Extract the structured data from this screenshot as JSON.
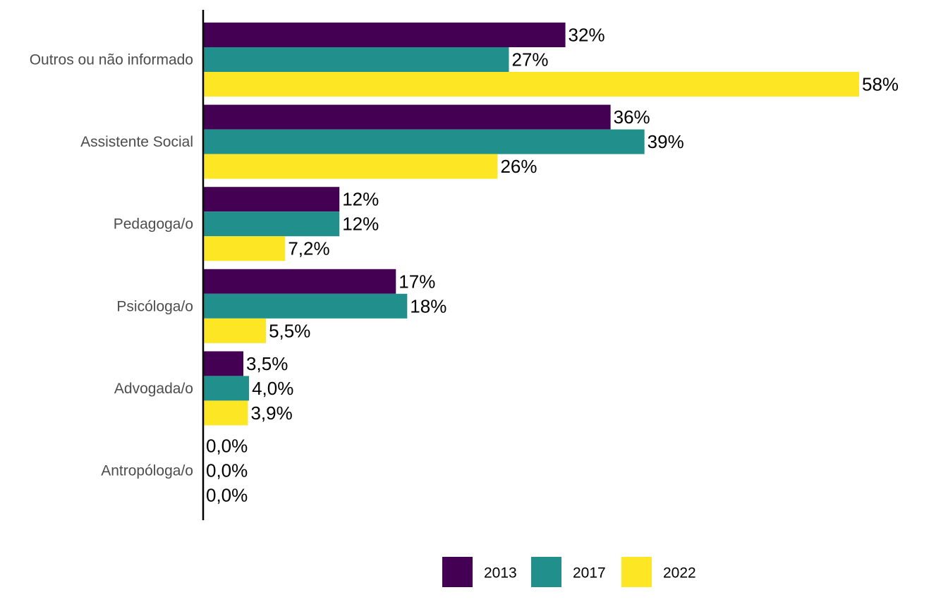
{
  "chart_data": {
    "type": "bar",
    "orientation": "horizontal",
    "categories": [
      "Outros ou não informado",
      "Assistente Social",
      "Pedagoga/o",
      "Psicóloga/o",
      "Advogada/o",
      "Antropóloga/o"
    ],
    "series": [
      {
        "name": "2013",
        "color": "#440154",
        "values": [
          32,
          36,
          12,
          17,
          3.5,
          0.0
        ],
        "labels": [
          "32%",
          "36%",
          "12%",
          "17%",
          "3,5%",
          "0,0%"
        ]
      },
      {
        "name": "2017",
        "color": "#21908C",
        "values": [
          27,
          39,
          12,
          18,
          4.0,
          0.0
        ],
        "labels": [
          "27%",
          "39%",
          "12%",
          "18%",
          "4,0%",
          "0,0%"
        ]
      },
      {
        "name": "2022",
        "color": "#FDE725",
        "values": [
          58,
          26,
          7.2,
          5.5,
          3.9,
          0.0
        ],
        "labels": [
          "58%",
          "26%",
          "7,2%",
          "5,5%",
          "3,9%",
          "0,0%"
        ]
      }
    ],
    "xlim": [
      0,
      58
    ],
    "grid": false,
    "legend_position": "bottom",
    "title": "",
    "xlabel": "",
    "ylabel": ""
  }
}
